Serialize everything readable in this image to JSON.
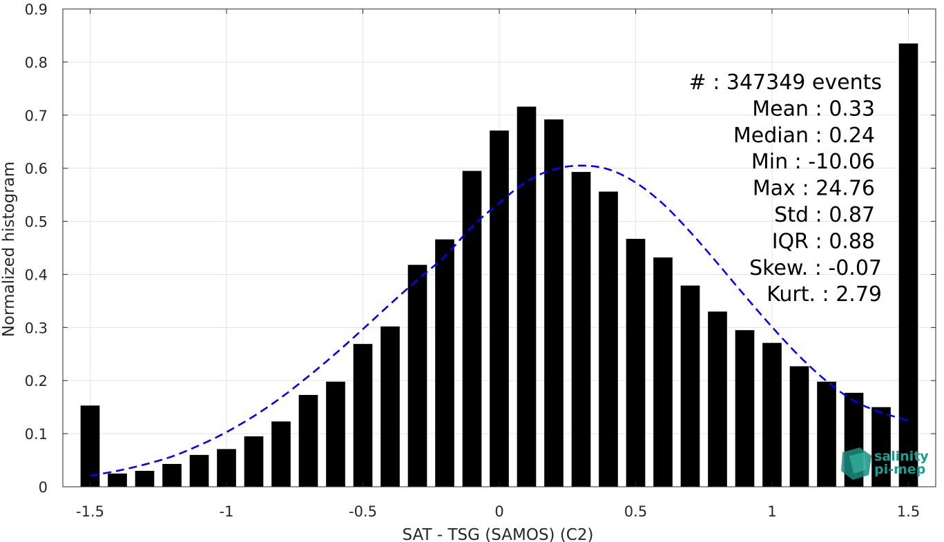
{
  "chart_data": {
    "type": "bar",
    "xlabel": "SAT - TSG (SAMOS) (C2)",
    "ylabel": "Normalized histogram",
    "xlim": [
      -1.6,
      1.6
    ],
    "ylim": [
      0,
      0.9
    ],
    "xticks": [
      -1.5,
      -1,
      -0.5,
      0,
      0.5,
      1,
      1.5
    ],
    "xtick_labels": [
      "-1.5",
      "-1",
      "-0.5",
      "0",
      "0.5",
      "1",
      "1.5"
    ],
    "yticks": [
      0,
      0.1,
      0.2,
      0.3,
      0.4,
      0.5,
      0.6,
      0.7,
      0.8,
      0.9
    ],
    "ytick_labels": [
      "0",
      "0.1",
      "0.2",
      "0.3",
      "0.4",
      "0.5",
      "0.6",
      "0.7",
      "0.8",
      "0.9"
    ],
    "grid": true,
    "bar_width": 0.07,
    "bars": {
      "x": [
        -1.5,
        -1.4,
        -1.3,
        -1.2,
        -1.1,
        -1.0,
        -0.9,
        -0.8,
        -0.7,
        -0.6,
        -0.5,
        -0.4,
        -0.3,
        -0.2,
        -0.1,
        0.0,
        0.1,
        0.2,
        0.3,
        0.4,
        0.5,
        0.6,
        0.7,
        0.8,
        0.9,
        1.0,
        1.1,
        1.2,
        1.3,
        1.4,
        1.5
      ],
      "values": [
        0.153,
        0.025,
        0.03,
        0.043,
        0.06,
        0.071,
        0.095,
        0.123,
        0.173,
        0.198,
        0.269,
        0.302,
        0.418,
        0.466,
        0.595,
        0.671,
        0.716,
        0.692,
        0.593,
        0.556,
        0.467,
        0.432,
        0.379,
        0.33,
        0.295,
        0.271,
        0.227,
        0.198,
        0.177,
        0.15,
        0.835
      ],
      "color": "#000000"
    },
    "gaussian_fit": {
      "style": "dashed",
      "color": "#0000ff",
      "x": [
        -1.5,
        -1.4,
        -1.3,
        -1.2,
        -1.1,
        -1.0,
        -0.9,
        -0.8,
        -0.7,
        -0.6,
        -0.5,
        -0.4,
        -0.3,
        -0.2,
        -0.1,
        0.0,
        0.1,
        0.2,
        0.3,
        0.4,
        0.5,
        0.6,
        0.7,
        0.8,
        0.9,
        1.0,
        1.1,
        1.2,
        1.3,
        1.4,
        1.5
      ],
      "values": [
        0.021,
        0.03,
        0.042,
        0.057,
        0.078,
        0.103,
        0.133,
        0.168,
        0.208,
        0.251,
        0.297,
        0.344,
        0.39,
        0.434,
        0.49,
        0.535,
        0.575,
        0.598,
        0.605,
        0.598,
        0.573,
        0.533,
        0.48,
        0.421,
        0.36,
        0.301,
        0.246,
        0.199,
        0.162,
        0.14,
        0.125
      ]
    },
    "stats_lines": [
      "#  : 347349 events",
      "Mean : 0.33",
      "Median : 0.24",
      "Min : -10.06",
      "Max : 24.76",
      "Std : 0.87",
      "IQR : 0.88",
      "Skew. : -0.07",
      "Kurt. : 2.79"
    ],
    "logo": {
      "line1": "salinity",
      "line2": "pi-mep",
      "color": "#1a9e8f"
    }
  }
}
